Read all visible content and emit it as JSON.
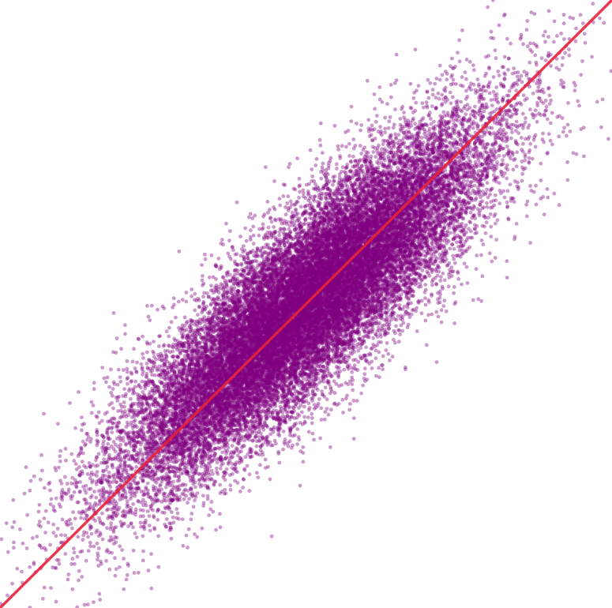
{
  "chart_data": {
    "type": "scatter",
    "title": "",
    "xlabel": "",
    "ylabel": "",
    "xlim": [
      0,
      1
    ],
    "ylim": [
      0,
      1
    ],
    "axes_visible": false,
    "grid": false,
    "legend": "none",
    "series": [
      {
        "kind": "points",
        "color": "#800080",
        "opacity": 0.4,
        "point_count_approx": 60000,
        "distribution": {
          "center": [
            0.5,
            0.5
          ],
          "major_axis_direction": [
            1,
            1
          ],
          "along_sd": 0.2,
          "perpendicular_sd": 0.055
        },
        "sample_points": [
          [
            0.02,
            0.04
          ],
          [
            0.1,
            0.12
          ],
          [
            0.2,
            0.18
          ],
          [
            0.3,
            0.32
          ],
          [
            0.4,
            0.38
          ],
          [
            0.5,
            0.52
          ],
          [
            0.6,
            0.58
          ],
          [
            0.7,
            0.72
          ],
          [
            0.8,
            0.79
          ],
          [
            0.9,
            0.91
          ],
          [
            0.98,
            0.97
          ]
        ]
      },
      {
        "kind": "line",
        "color": "#e8213a",
        "x": [
          0,
          1
        ],
        "y": [
          0,
          1
        ]
      }
    ]
  }
}
